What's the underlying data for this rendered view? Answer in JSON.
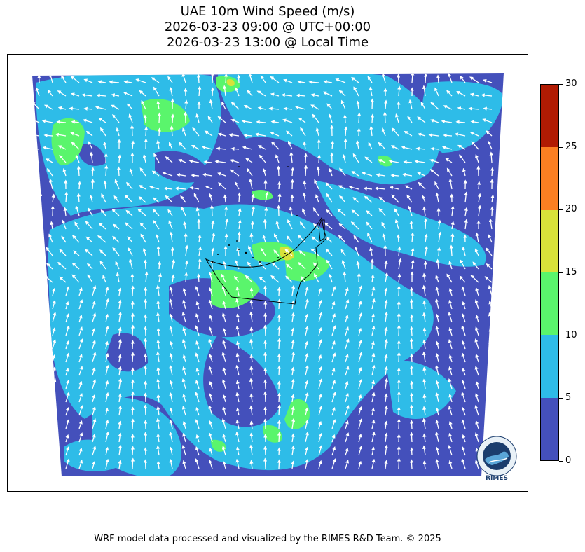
{
  "title": {
    "line1": "UAE 10m Wind Speed (m/s)",
    "line2": "2026-03-23 09:00 @ UTC+00:00",
    "line3": "2026-03-23 13:00 @ Local Time"
  },
  "colorbar": {
    "levels": [
      {
        "from": 0,
        "to": 5,
        "color": "#4450bb"
      },
      {
        "from": 5,
        "to": 10,
        "color": "#2ebce8"
      },
      {
        "from": 10,
        "to": 15,
        "color": "#5af56c"
      },
      {
        "from": 15,
        "to": 20,
        "color": "#d8e23a"
      },
      {
        "from": 20,
        "to": 25,
        "color": "#fb7f22"
      },
      {
        "from": 25,
        "to": 30,
        "color": "#b11b03"
      }
    ],
    "tick_labels": [
      "0",
      "5",
      "10",
      "15",
      "20",
      "25",
      "30"
    ],
    "range": [
      0,
      30
    ]
  },
  "map": {
    "variable": "10m wind speed",
    "units": "m/s",
    "vector_color": "#ffffff",
    "boundary_color": "#000000",
    "dominant_flow": "south-to-north over southern domain, mixed in north"
  },
  "logo": {
    "name": "rimes-logo",
    "text": "RIMES"
  },
  "footer": "WRF model data processed and visualized by the RIMES R&D Team. © 2025"
}
